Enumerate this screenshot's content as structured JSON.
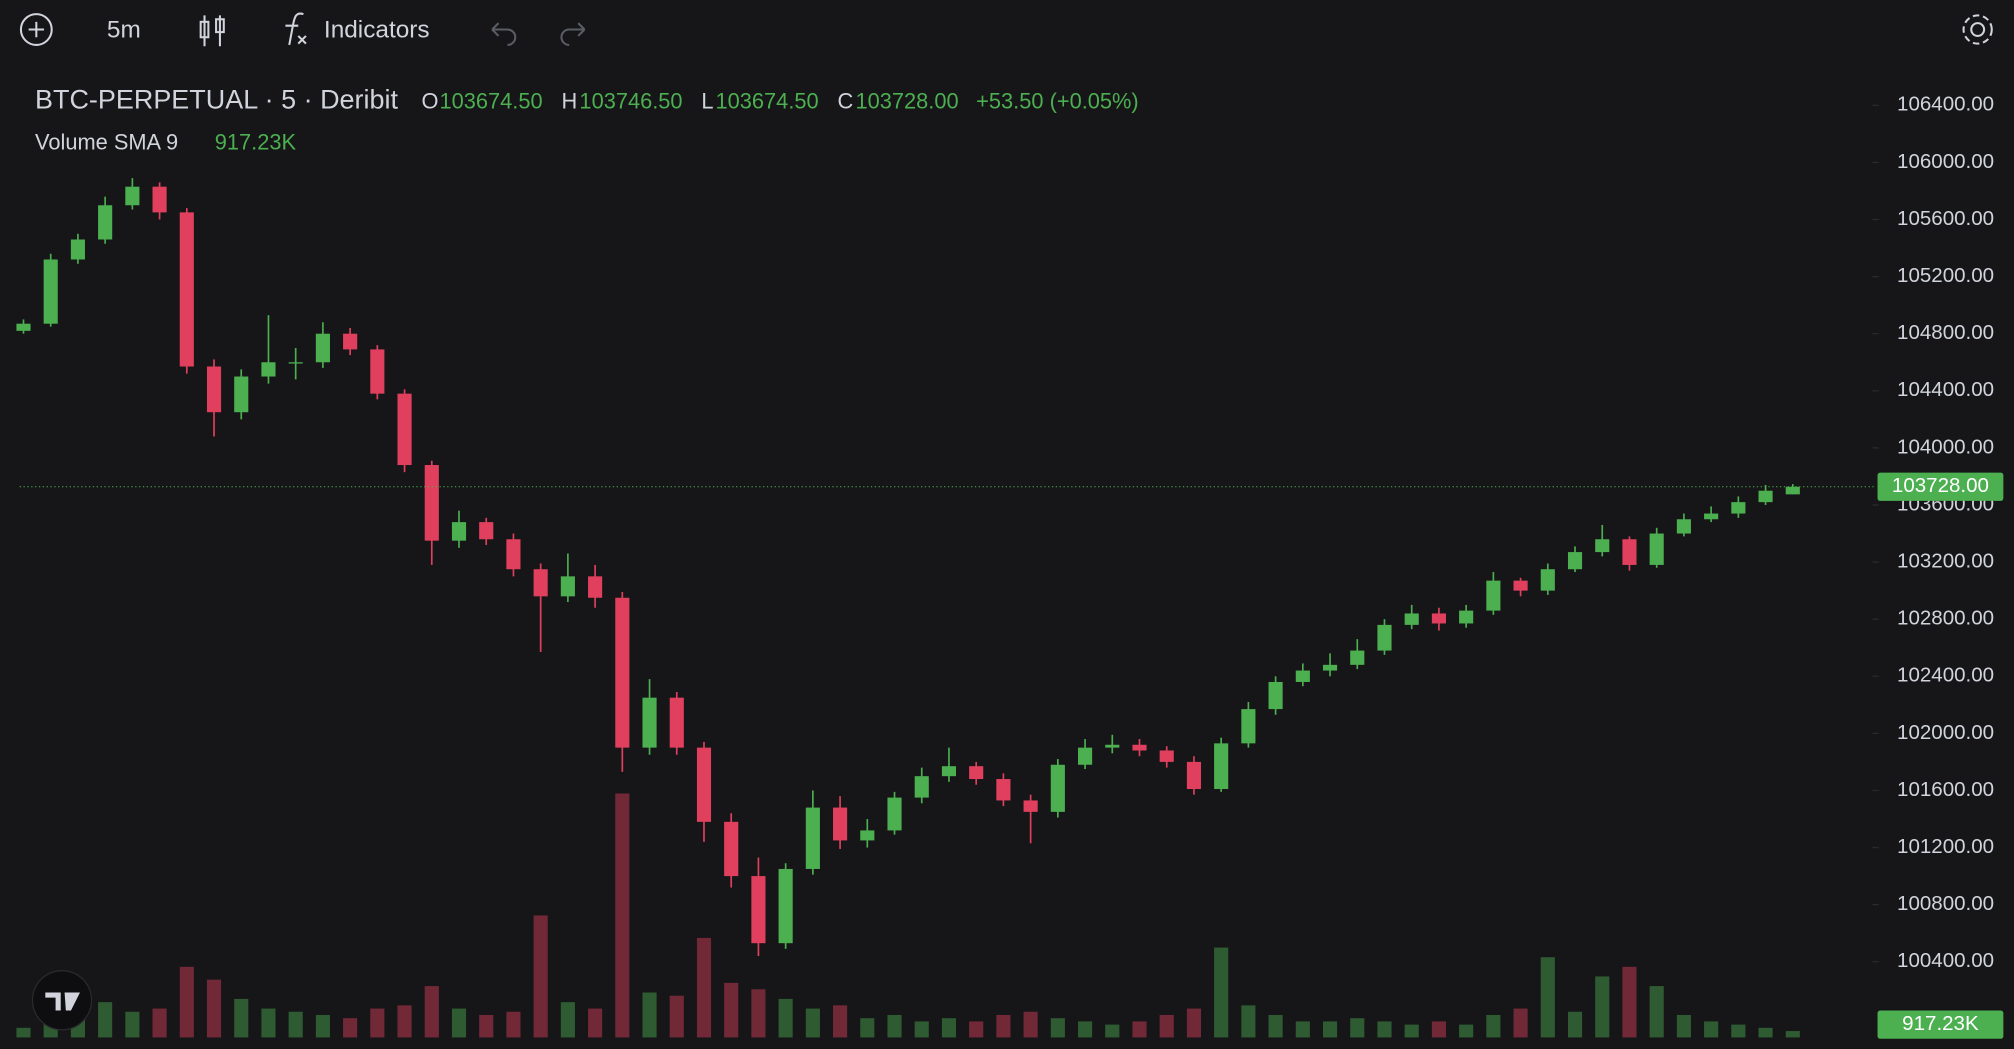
{
  "toolbar": {
    "interval": "5m",
    "indicators": "Indicators"
  },
  "legend": {
    "symbol": "BTC-PERPETUAL · 5 · Deribit",
    "o_label": "O",
    "open": "103674.50",
    "h_label": "H",
    "high": "103746.50",
    "l_label": "L",
    "low": "103674.50",
    "c_label": "C",
    "close": "103728.00",
    "change": "+53.50 (+0.05%)",
    "volume_label": "Volume SMA 9",
    "volume_value": "917.23K"
  },
  "chart_data": {
    "type": "candlestick",
    "open": [
      104820,
      104870,
      105320,
      105460,
      105700,
      105830,
      105650,
      104570,
      104250,
      104500,
      104600,
      104600,
      104800,
      104690,
      104380,
      103880,
      103350,
      103480,
      103360,
      103150,
      102960,
      103100,
      102950,
      101900,
      102250,
      101900,
      101380,
      101000,
      100530,
      101050,
      101480,
      101250,
      101320,
      101550,
      101700,
      101770,
      101680,
      101530,
      101450,
      101780,
      101900,
      101920,
      101880,
      101800,
      101610,
      101930,
      102170,
      102360,
      102440,
      102480,
      102580,
      102760,
      102840,
      102770,
      102860,
      103070,
      103000,
      103150,
      103270,
      103360,
      103180,
      103400,
      103500,
      103540,
      103620,
      103674.5
    ],
    "high": [
      104900,
      105360,
      105500,
      105760,
      105890,
      105860,
      105680,
      104620,
      104550,
      104930,
      104700,
      104880,
      104840,
      104720,
      104410,
      103910,
      103560,
      103510,
      103400,
      103190,
      103260,
      103180,
      102990,
      102380,
      102290,
      101940,
      101440,
      101130,
      101090,
      101600,
      101560,
      101400,
      101590,
      101760,
      101900,
      101800,
      101720,
      101570,
      101820,
      101960,
      101990,
      101960,
      101910,
      101840,
      101970,
      102220,
      102400,
      102490,
      102560,
      102660,
      102800,
      102900,
      102880,
      102900,
      103130,
      103090,
      103190,
      103310,
      103460,
      103380,
      103440,
      103540,
      103590,
      103660,
      103740,
      103746.5
    ],
    "low": [
      104800,
      104850,
      105290,
      105430,
      105670,
      105600,
      104520,
      104080,
      104200,
      104450,
      104480,
      104560,
      104650,
      104340,
      103830,
      103180,
      103300,
      103320,
      103100,
      102570,
      102920,
      102880,
      101730,
      101850,
      101850,
      101240,
      100920,
      100440,
      100490,
      101010,
      101190,
      101200,
      101290,
      101510,
      101660,
      101640,
      101490,
      101230,
      101410,
      101750,
      101860,
      101840,
      101760,
      101570,
      101590,
      101900,
      102130,
      102330,
      102400,
      102450,
      102550,
      102730,
      102720,
      102740,
      102830,
      102960,
      102970,
      103130,
      103240,
      103140,
      103160,
      103380,
      103480,
      103510,
      103600,
      103674.5
    ],
    "close": [
      104870,
      105320,
      105460,
      105700,
      105830,
      105650,
      104570,
      104250,
      104500,
      104600,
      104600,
      104800,
      104690,
      104380,
      103880,
      103350,
      103480,
      103360,
      103150,
      102960,
      103100,
      102950,
      101900,
      102250,
      101900,
      101380,
      101000,
      100530,
      101050,
      101480,
      101250,
      101320,
      101550,
      101700,
      101770,
      101680,
      101530,
      101450,
      101780,
      101900,
      101920,
      101880,
      101800,
      101610,
      101930,
      102170,
      102360,
      102440,
      102480,
      102580,
      102760,
      102840,
      102770,
      102860,
      103070,
      103000,
      103150,
      103270,
      103360,
      103180,
      103400,
      103500,
      103540,
      103620,
      103700,
      103728
    ],
    "volume": [
      300000,
      900000,
      700000,
      1100000,
      800000,
      900000,
      2200000,
      1800000,
      1200000,
      900000,
      800000,
      700000,
      600000,
      900000,
      1000000,
      1600000,
      900000,
      700000,
      800000,
      3800000,
      1100000,
      900000,
      7600000,
      1400000,
      1300000,
      3100000,
      1700000,
      1500000,
      1200000,
      900000,
      1000000,
      600000,
      700000,
      500000,
      600000,
      500000,
      700000,
      800000,
      600000,
      500000,
      400000,
      500000,
      700000,
      900000,
      2800000,
      1000000,
      700000,
      500000,
      500000,
      600000,
      500000,
      400000,
      500000,
      400000,
      700000,
      900000,
      2500000,
      800000,
      1900000,
      2200000,
      1600000,
      700000,
      500000,
      400000,
      300000,
      200000
    ],
    "ylim": [
      100000,
      106600
    ],
    "yticks": [
      {
        "value": 100400,
        "label": "100400.00"
      },
      {
        "value": 100800,
        "label": "100800.00"
      },
      {
        "value": 101200,
        "label": "101200.00"
      },
      {
        "value": 101600,
        "label": "101600.00"
      },
      {
        "value": 102000,
        "label": "102000.00"
      },
      {
        "value": 102400,
        "label": "102400.00"
      },
      {
        "value": 102800,
        "label": "102800.00"
      },
      {
        "value": 103200,
        "label": "103200.00"
      },
      {
        "value": 103600,
        "label": "103600.00"
      },
      {
        "value": 104000,
        "label": "104000.00"
      },
      {
        "value": 104400,
        "label": "104400.00"
      },
      {
        "value": 104800,
        "label": "104800.00"
      },
      {
        "value": 105200,
        "label": "105200.00"
      },
      {
        "value": 105600,
        "label": "105600.00"
      },
      {
        "value": 106000,
        "label": "106000.00"
      },
      {
        "value": 106400,
        "label": "106400.00"
      }
    ],
    "last_price": {
      "value": 103728,
      "label": "103728.00"
    },
    "up_color": "#4caf50",
    "down_color": "#e0405e"
  }
}
